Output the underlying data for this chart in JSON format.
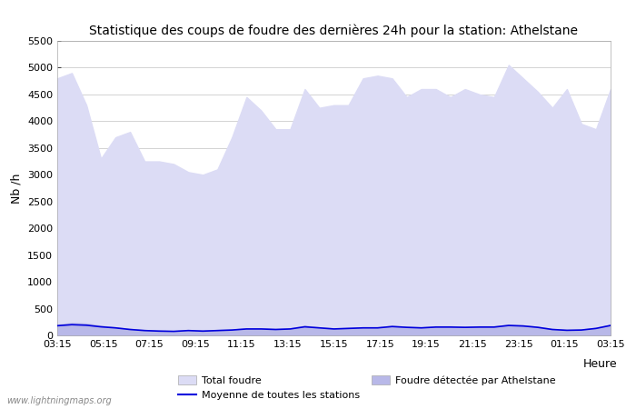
{
  "title": "Statistique des coups de foudre des dernières 24h pour la station: Athelstane",
  "xlabel": "Heure",
  "ylabel": "Nb /h",
  "ylim": [
    0,
    5500
  ],
  "yticks": [
    0,
    500,
    1000,
    1500,
    2000,
    2500,
    3000,
    3500,
    4000,
    4500,
    5000,
    5500
  ],
  "xtick_labels": [
    "03:15",
    "05:15",
    "07:15",
    "09:15",
    "11:15",
    "13:15",
    "15:15",
    "17:15",
    "19:15",
    "21:15",
    "23:15",
    "01:15",
    "03:15"
  ],
  "background_color": "#ffffff",
  "plot_bg_color": "#ffffff",
  "grid_color": "#cccccc",
  "fill_total_color": "#dcdcf5",
  "fill_local_color": "#b8b8e8",
  "line_mean_color": "#0000dd",
  "watermark": "www.lightningmaps.org",
  "total_foudre": [
    4800,
    4900,
    4300,
    3300,
    3700,
    3800,
    3250,
    3250,
    3200,
    3050,
    3000,
    3100,
    3700,
    4450,
    4200,
    3850,
    3850,
    4600,
    4250,
    4300,
    4300,
    4800,
    4850,
    4800,
    4450,
    4600,
    4600,
    4450,
    4600,
    4500,
    4450,
    5050,
    4800,
    4550,
    4250,
    4600,
    3950,
    3850,
    4600
  ],
  "local_foudre": [
    200,
    230,
    220,
    180,
    150,
    120,
    100,
    90,
    80,
    100,
    90,
    100,
    110,
    130,
    130,
    120,
    130,
    180,
    150,
    130,
    140,
    150,
    150,
    180,
    160,
    150,
    170,
    170,
    160,
    170,
    170,
    200,
    190,
    160,
    120,
    100,
    110,
    140,
    200
  ],
  "mean_line": [
    180,
    200,
    190,
    160,
    140,
    110,
    90,
    80,
    75,
    90,
    80,
    90,
    100,
    120,
    120,
    110,
    120,
    160,
    140,
    120,
    130,
    140,
    140,
    165,
    150,
    140,
    155,
    155,
    150,
    155,
    155,
    185,
    175,
    150,
    110,
    95,
    100,
    130,
    185
  ],
  "n_points": 39,
  "legend_total_label": "Total foudre",
  "legend_mean_label": "Moyenne de toutes les stations",
  "legend_local_label": "Foudre détectée par Athelstane"
}
